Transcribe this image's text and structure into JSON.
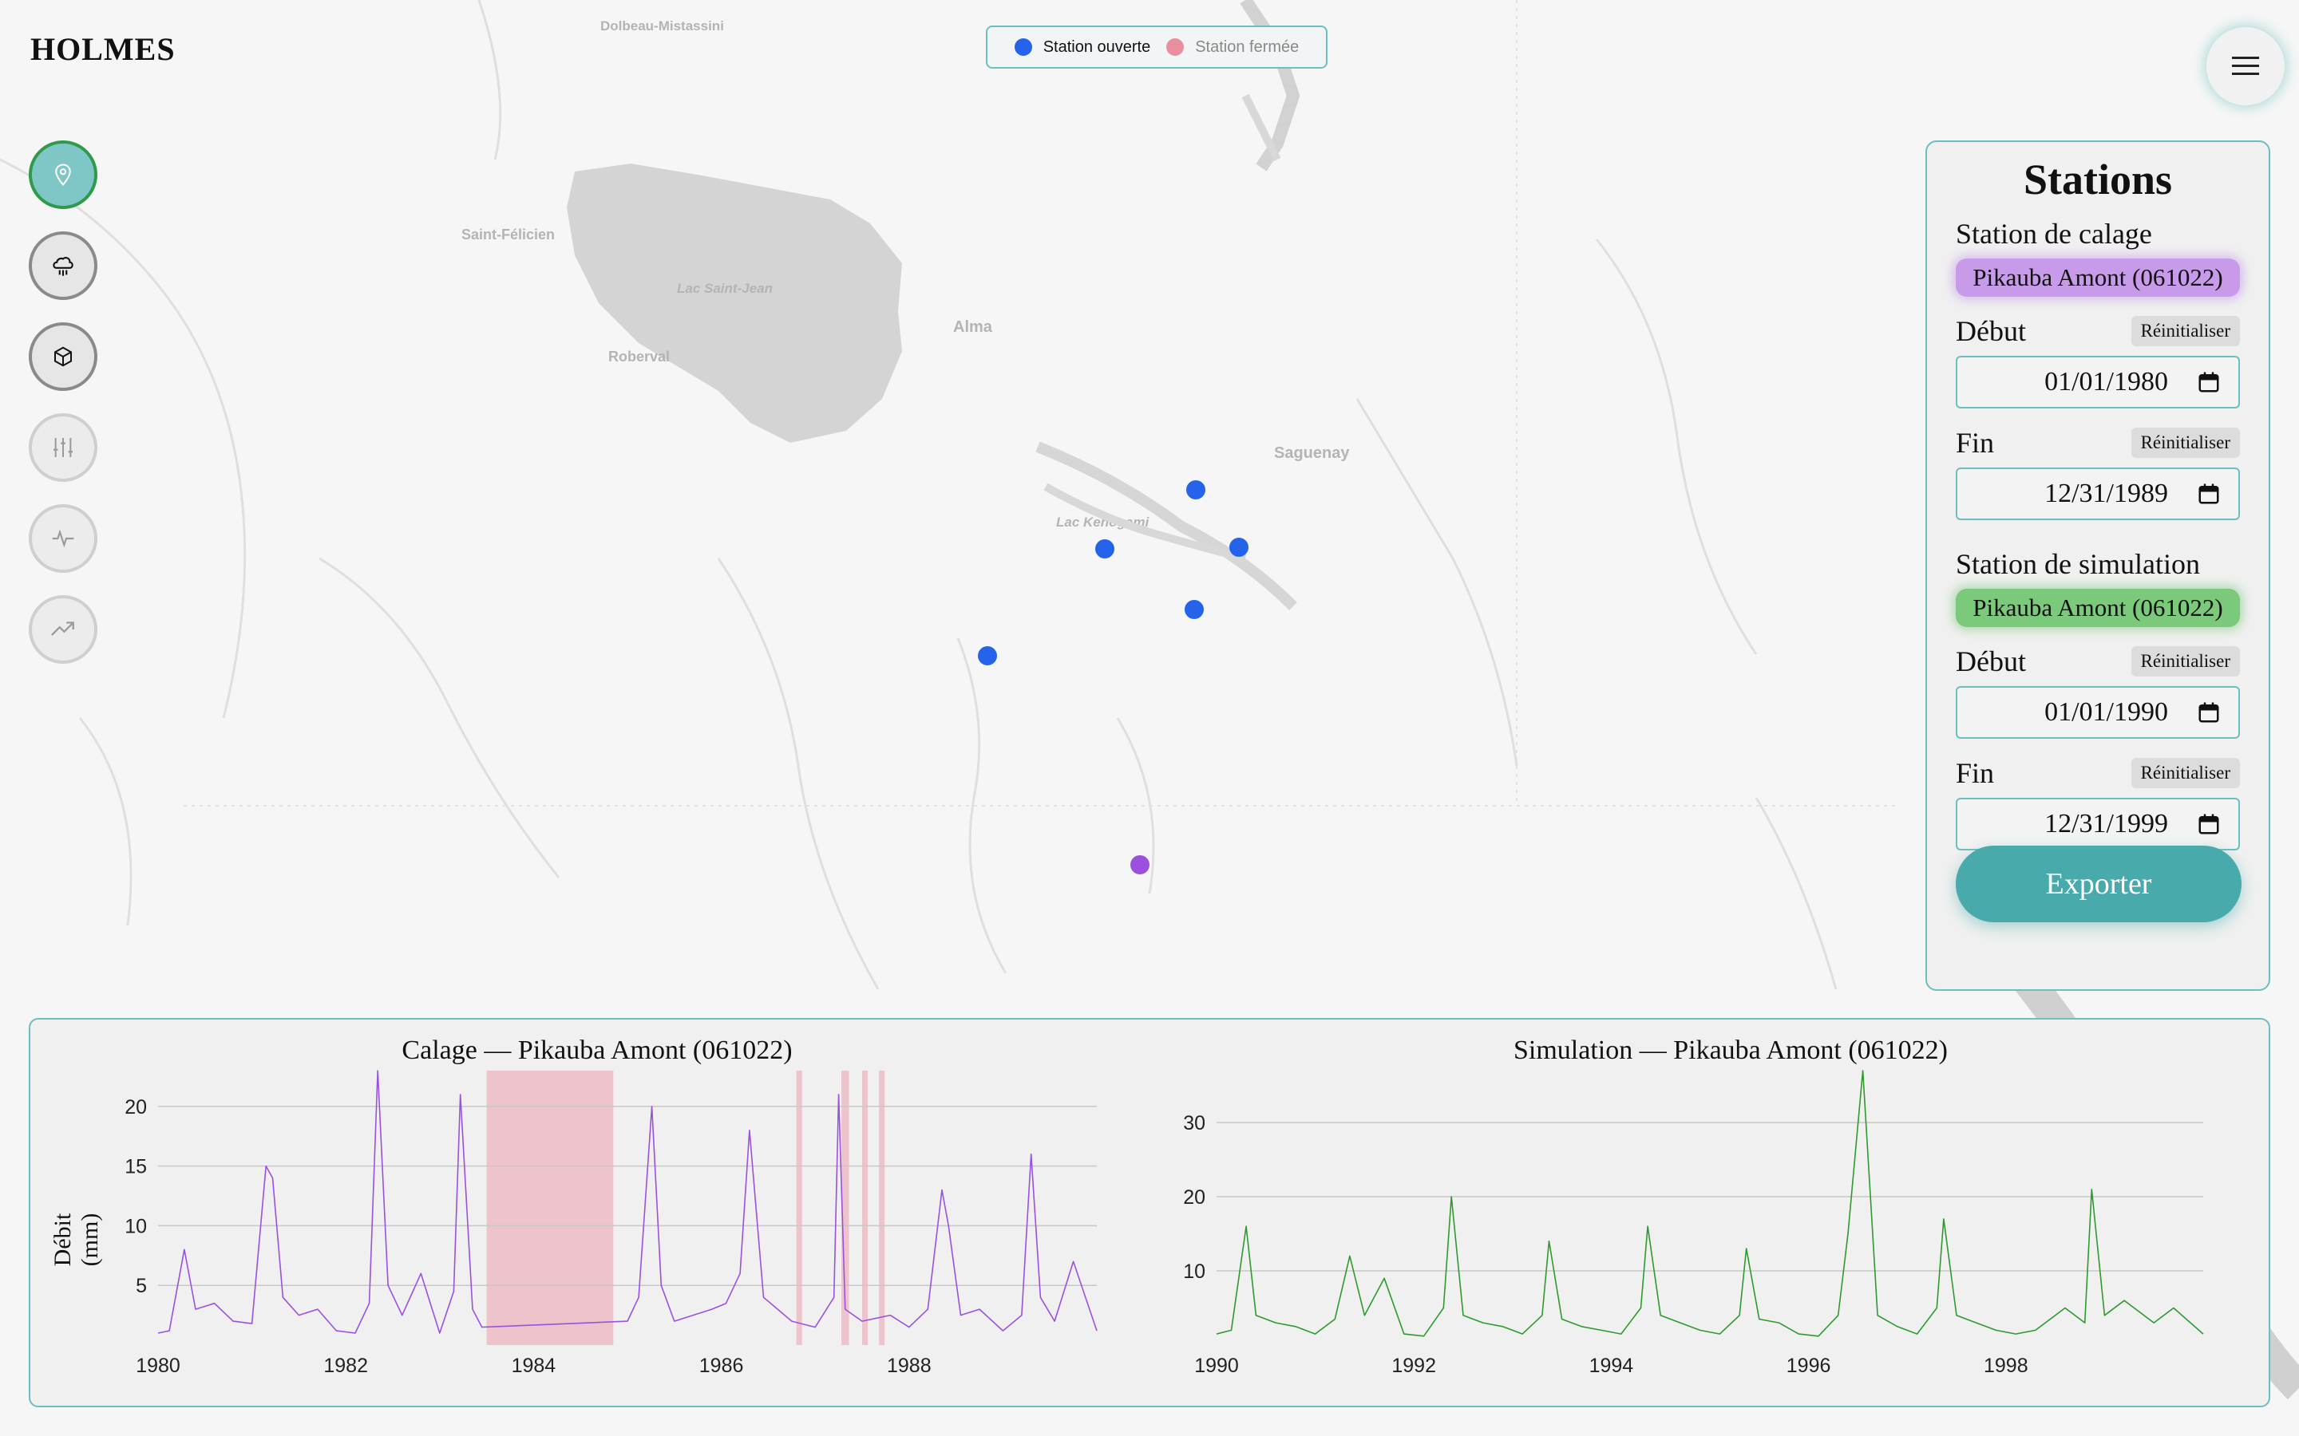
{
  "app": {
    "brand": "HOLMES"
  },
  "legend": {
    "open": {
      "label": "Station ouverte",
      "color": "#2563eb"
    },
    "closed": {
      "label": "Station fermée",
      "color": "#e98fa0"
    }
  },
  "map": {
    "places": [
      "Dolbeau-Mistassini",
      "Saint-Félicien",
      "Lac Saint-Jean",
      "Roberval",
      "Alma",
      "Saguenay",
      "Lac Kenogami"
    ],
    "stations": [
      {
        "status": "open",
        "color": "#2563eb"
      },
      {
        "status": "open",
        "color": "#2563eb"
      },
      {
        "status": "open",
        "color": "#2563eb"
      },
      {
        "status": "open",
        "color": "#2563eb"
      },
      {
        "status": "open",
        "color": "#2563eb"
      },
      {
        "status": "selected",
        "color": "#9b51e0"
      }
    ]
  },
  "nav": [
    {
      "icon": "map-pin-icon",
      "state": "active"
    },
    {
      "icon": "rain-cloud-icon",
      "state": "enabled"
    },
    {
      "icon": "cube-icon",
      "state": "enabled"
    },
    {
      "icon": "sliders-icon",
      "state": "disabled"
    },
    {
      "icon": "activity-icon",
      "state": "disabled"
    },
    {
      "icon": "trending-up-icon",
      "state": "disabled"
    }
  ],
  "panel": {
    "title": "Stations",
    "calibration": {
      "label": "Station de calage",
      "station": "Pikauba Amont (061022)",
      "start_label": "Début",
      "start": "01/01/1980",
      "end_label": "Fin",
      "end": "12/31/1989",
      "reset": "Réinitialiser"
    },
    "simulation": {
      "label": "Station de simulation",
      "station": "Pikauba Amont (061022)",
      "start_label": "Début",
      "start": "01/01/1990",
      "end_label": "Fin",
      "end": "12/31/1999",
      "reset": "Réinitialiser"
    },
    "export": "Exporter"
  },
  "chart_data": [
    {
      "type": "line",
      "title": "Calage — Pikauba Amont (061022)",
      "ylabel": "Débit (mm)",
      "xlabel": "",
      "xlim": [
        1980,
        1990
      ],
      "ylim": [
        0,
        23
      ],
      "yticks": [
        5,
        10,
        15,
        20
      ],
      "xticks": [
        1980,
        1982,
        1984,
        1986,
        1988
      ],
      "color": "#9b51e0",
      "missing_periods": [
        [
          1983.5,
          1984.85
        ],
        [
          1986.8,
          1986.86
        ],
        [
          1987.28,
          1987.36
        ],
        [
          1987.5,
          1987.56
        ],
        [
          1987.68,
          1987.74
        ]
      ],
      "missing_color": "#e98fa0",
      "series": [
        {
          "x": [
            1980.0,
            1980.12,
            1980.28,
            1980.4,
            1980.6,
            1980.8,
            1981.0,
            1981.15,
            1981.22,
            1981.33,
            1981.5,
            1981.7,
            1981.9,
            1982.1,
            1982.25,
            1982.34,
            1982.45,
            1982.6,
            1982.8,
            1983.0,
            1983.15,
            1983.22,
            1983.35,
            1983.45,
            1985.0,
            1985.12,
            1985.26,
            1985.36,
            1985.5,
            1985.7,
            1985.9,
            1986.05,
            1986.2,
            1986.3,
            1986.45,
            1986.6,
            1986.75,
            1987.0,
            1987.2,
            1987.25,
            1987.32,
            1987.5,
            1987.8,
            1988.0,
            1988.2,
            1988.35,
            1988.42,
            1988.55,
            1988.75,
            1989.0,
            1989.2,
            1989.3,
            1989.4,
            1989.55,
            1989.75,
            1990.0
          ],
          "y": [
            1.0,
            1.2,
            8.0,
            3.0,
            3.5,
            2.0,
            1.8,
            15.0,
            14.0,
            4.0,
            2.5,
            3.0,
            1.2,
            1.0,
            3.5,
            23.0,
            5.0,
            2.5,
            6.0,
            1.0,
            4.5,
            21.0,
            3.0,
            1.5,
            2.0,
            4.0,
            20.0,
            5.0,
            2.0,
            2.5,
            3.0,
            3.5,
            6.0,
            18.0,
            4.0,
            3.0,
            2.0,
            1.5,
            4.0,
            21.0,
            3.0,
            2.0,
            2.5,
            1.5,
            3.0,
            13.0,
            10.0,
            2.5,
            3.0,
            1.2,
            2.5,
            16.0,
            4.0,
            2.0,
            7.0,
            1.2
          ]
        }
      ]
    },
    {
      "type": "line",
      "title": "Simulation — Pikauba Amont (061022)",
      "ylabel": "",
      "xlabel": "",
      "xlim": [
        1990,
        2000
      ],
      "ylim": [
        0,
        37
      ],
      "yticks": [
        10,
        20,
        30
      ],
      "xticks": [
        1990,
        1992,
        1994,
        1996,
        1998
      ],
      "color": "#2e9a2e",
      "series": [
        {
          "x": [
            1990.0,
            1990.15,
            1990.3,
            1990.4,
            1990.6,
            1990.8,
            1991.0,
            1991.2,
            1991.35,
            1991.5,
            1991.7,
            1991.9,
            1992.1,
            1992.3,
            1992.38,
            1992.5,
            1992.7,
            1992.9,
            1993.1,
            1993.3,
            1993.37,
            1993.5,
            1993.7,
            1993.9,
            1994.1,
            1994.3,
            1994.37,
            1994.5,
            1994.7,
            1994.9,
            1995.1,
            1995.3,
            1995.37,
            1995.5,
            1995.7,
            1995.9,
            1996.1,
            1996.3,
            1996.4,
            1996.55,
            1996.7,
            1996.9,
            1997.1,
            1997.3,
            1997.37,
            1997.5,
            1997.7,
            1997.9,
            1998.1,
            1998.3,
            1998.6,
            1998.8,
            1998.87,
            1999.0,
            1999.2,
            1999.5,
            1999.7,
            2000.0
          ],
          "y": [
            1.5,
            2.0,
            16.0,
            4.0,
            3.0,
            2.5,
            1.5,
            3.5,
            12.0,
            4.0,
            9.0,
            1.5,
            1.2,
            5.0,
            20.0,
            4.0,
            3.0,
            2.5,
            1.5,
            4.0,
            14.0,
            3.5,
            2.5,
            2.0,
            1.5,
            5.0,
            16.0,
            4.0,
            3.0,
            2.0,
            1.5,
            4.0,
            13.0,
            3.5,
            3.0,
            1.5,
            1.2,
            4.0,
            15.0,
            37.0,
            4.0,
            2.5,
            1.5,
            5.0,
            17.0,
            4.0,
            3.0,
            2.0,
            1.5,
            2.0,
            5.0,
            3.0,
            21.0,
            4.0,
            6.0,
            3.0,
            5.0,
            1.5
          ]
        }
      ]
    }
  ]
}
